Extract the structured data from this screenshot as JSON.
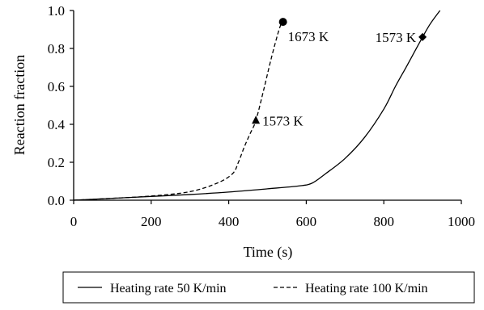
{
  "chart_data": {
    "type": "line",
    "xlabel": "Time (s)",
    "ylabel": "Reaction fraction",
    "xlim": [
      0,
      1000
    ],
    "ylim": [
      0,
      1.0
    ],
    "x_ticks": [
      0,
      200,
      400,
      600,
      800,
      1000
    ],
    "y_ticks": [
      "0.0",
      "0.2",
      "0.4",
      "0.6",
      "0.8",
      "1.0"
    ],
    "grid": false,
    "legend_position": "bottom",
    "series": [
      {
        "name": "Heating rate 50 K/min",
        "style": "solid",
        "color": "#000000",
        "x": [
          0,
          100,
          200,
          300,
          400,
          500,
          580,
          615,
          650,
          700,
          750,
          800,
          830,
          860,
          900,
          920,
          945
        ],
        "y": [
          0.0,
          0.01,
          0.02,
          0.03,
          0.043,
          0.06,
          0.075,
          0.09,
          0.14,
          0.22,
          0.33,
          0.48,
          0.6,
          0.71,
          0.86,
          0.93,
          1.0
        ]
      },
      {
        "name": "Heating rate 100 K/min",
        "style": "dashed",
        "color": "#000000",
        "x": [
          0,
          100,
          200,
          300,
          370,
          410,
          425,
          440,
          455,
          470,
          490,
          510,
          530,
          542
        ],
        "y": [
          0.0,
          0.01,
          0.022,
          0.045,
          0.09,
          0.14,
          0.2,
          0.28,
          0.35,
          0.42,
          0.58,
          0.75,
          0.9,
          0.96
        ]
      }
    ],
    "annotations": [
      {
        "label": "1673 K",
        "x": 540,
        "y": 0.94,
        "marker": "circle"
      },
      {
        "label": "1573 K",
        "x": 470,
        "y": 0.42,
        "marker": "triangle"
      },
      {
        "label": "1573 K",
        "x": 900,
        "y": 0.86,
        "marker": "diamond"
      }
    ]
  }
}
